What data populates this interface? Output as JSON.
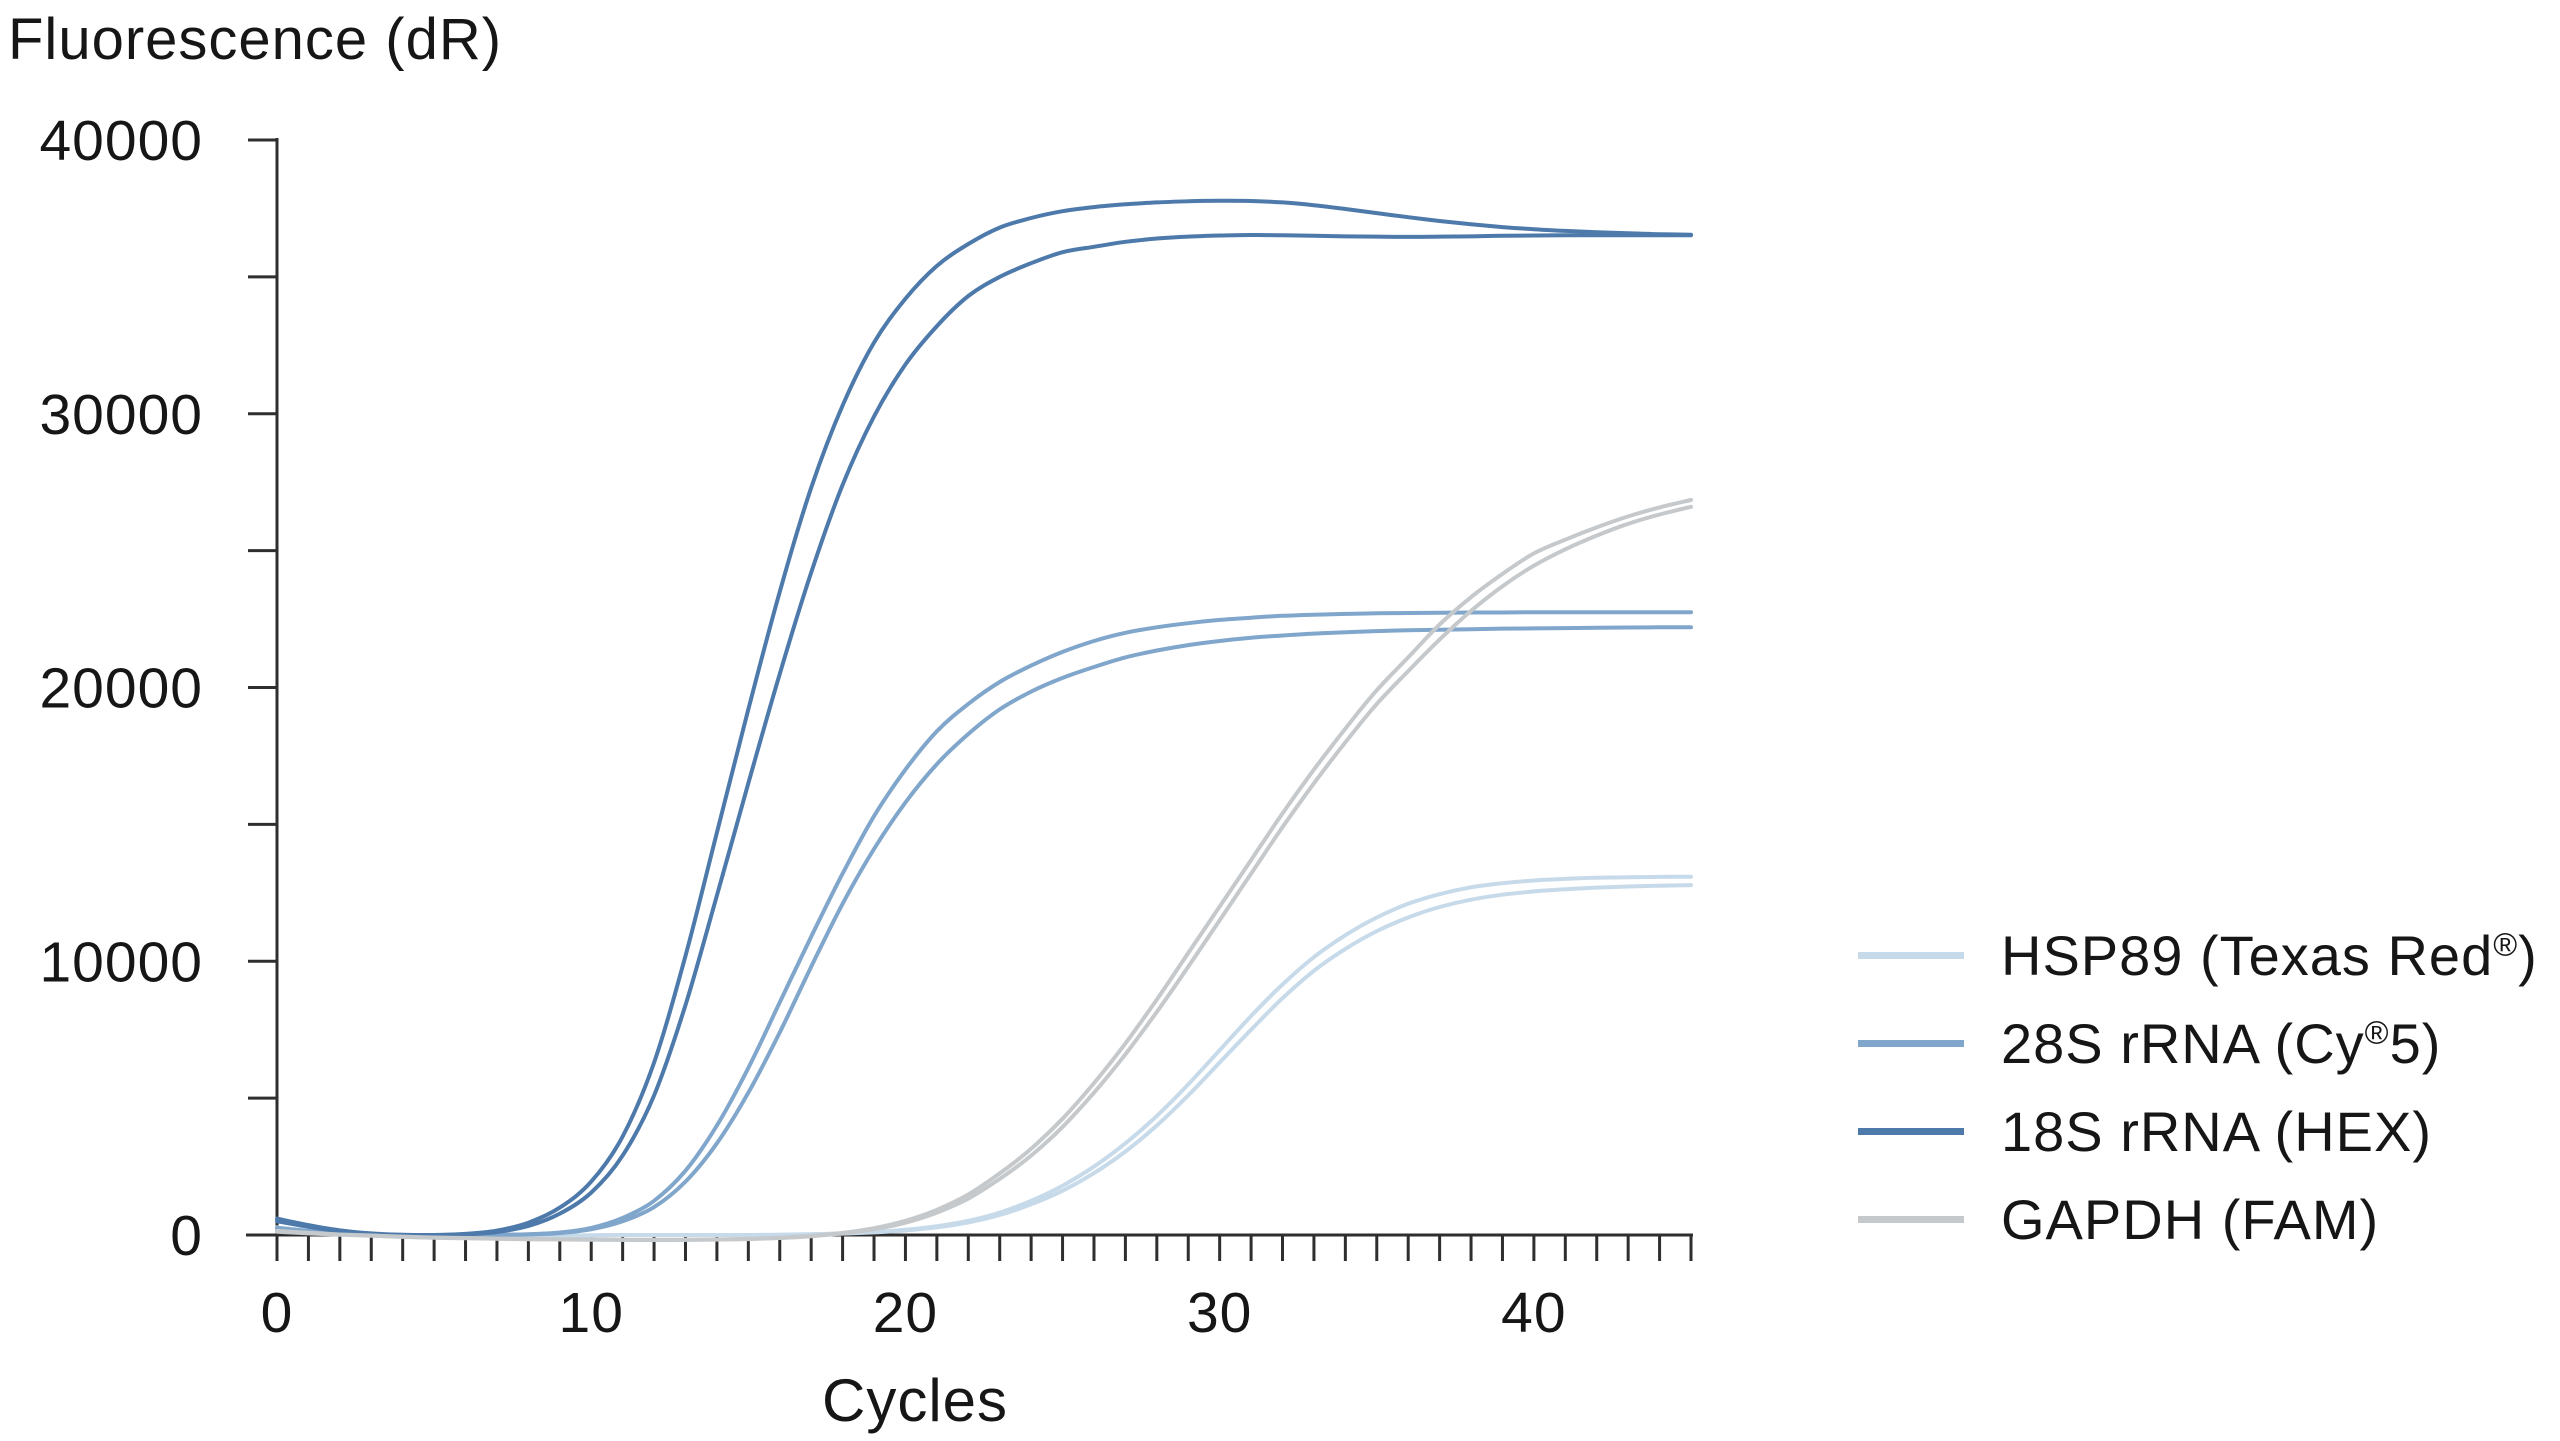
{
  "chart_data": {
    "type": "line",
    "xlabel": "Cycles",
    "ylabel": "Fluorescence (dR)",
    "xlim": [
      0,
      45
    ],
    "ylim": [
      0,
      40000
    ],
    "x_major_ticks": [
      0,
      10,
      20,
      30,
      40
    ],
    "x_minor_tick_step": 1,
    "y_major_ticks": [
      0,
      10000,
      20000,
      30000,
      40000
    ],
    "y_minor_tick_step": 5000,
    "grid": false,
    "legend_position": "right-center",
    "axis_color": "#2e2e2e",
    "text_color": "#161616",
    "cycles": [
      0,
      1,
      2,
      3,
      4,
      5,
      6,
      7,
      8,
      9,
      10,
      11,
      12,
      13,
      14,
      15,
      16,
      17,
      18,
      19,
      20,
      21,
      22,
      23,
      24,
      25,
      26,
      27,
      28,
      29,
      30,
      31,
      32,
      33,
      34,
      35,
      36,
      37,
      38,
      39,
      40,
      41,
      42,
      43,
      44,
      45
    ],
    "series": [
      {
        "id": "hsp89",
        "name": "HSP89 (Texas Red®)",
        "label_pre": "HSP89 (Texas Red",
        "label_sup": "®",
        "label_post": ")",
        "color": "#c7daea",
        "replicates": [
          [
            280,
            160,
            60,
            0,
            -40,
            -70,
            -80,
            -70,
            -50,
            -30,
            -10,
            0,
            0,
            0,
            0,
            0,
            10,
            30,
            60,
            110,
            190,
            320,
            520,
            820,
            1250,
            1800,
            2500,
            3350,
            4350,
            5500,
            6750,
            8000,
            9150,
            10150,
            10950,
            11600,
            12100,
            12450,
            12700,
            12850,
            12950,
            13010,
            13050,
            13070,
            13080,
            13090
          ],
          [
            220,
            120,
            40,
            -10,
            -50,
            -75,
            -85,
            -75,
            -55,
            -35,
            -15,
            0,
            0,
            0,
            0,
            0,
            10,
            25,
            50,
            95,
            165,
            280,
            460,
            730,
            1120,
            1620,
            2260,
            3050,
            4000,
            5100,
            6300,
            7500,
            8650,
            9650,
            10450,
            11100,
            11600,
            11980,
            12250,
            12430,
            12550,
            12630,
            12690,
            12730,
            12760,
            12780
          ]
        ]
      },
      {
        "id": "28s-rrna",
        "name": "28S rRNA (Cy®5)",
        "label_pre": "28S rRNA (Cy",
        "label_sup": "®",
        "label_post": "5)",
        "color": "#80a6cb",
        "replicates": [
          [
            260,
            150,
            60,
            10,
            0,
            0,
            0,
            10,
            30,
            90,
            260,
            620,
            1250,
            2350,
            4000,
            6100,
            8500,
            10900,
            13200,
            15300,
            17000,
            18400,
            19400,
            20200,
            20800,
            21300,
            21700,
            22000,
            22200,
            22350,
            22470,
            22550,
            22620,
            22660,
            22690,
            22710,
            22720,
            22730,
            22740,
            22740,
            22750,
            22750,
            22750,
            22750,
            22750,
            22750
          ],
          [
            200,
            110,
            40,
            0,
            0,
            0,
            0,
            0,
            20,
            70,
            210,
            500,
            1020,
            1950,
            3350,
            5200,
            7400,
            9800,
            12100,
            14100,
            15800,
            17200,
            18300,
            19200,
            19850,
            20350,
            20750,
            21100,
            21350,
            21550,
            21700,
            21820,
            21900,
            21970,
            22020,
            22060,
            22090,
            22110,
            22130,
            22150,
            22160,
            22170,
            22180,
            22190,
            22200,
            22200
          ]
        ]
      },
      {
        "id": "18s-rrna",
        "name": "18S rRNA (HEX)",
        "label_pre": "18S rRNA (HEX)",
        "label_sup": "",
        "label_post": "",
        "color": "#4d7aab",
        "replicates": [
          [
            600,
            360,
            170,
            60,
            10,
            0,
            40,
            160,
            450,
            1000,
            1950,
            3600,
            6300,
            10200,
            14700,
            19200,
            23500,
            27300,
            30300,
            32600,
            34200,
            35400,
            36200,
            36800,
            37150,
            37400,
            37550,
            37650,
            37720,
            37760,
            37780,
            37770,
            37720,
            37620,
            37480,
            37330,
            37180,
            37040,
            36920,
            36820,
            36740,
            36680,
            36630,
            36590,
            36560,
            36540
          ],
          [
            500,
            300,
            130,
            40,
            0,
            0,
            25,
            110,
            330,
            780,
            1550,
            2900,
            5100,
            8400,
            12400,
            16500,
            20500,
            24200,
            27400,
            29900,
            31800,
            33200,
            34300,
            35000,
            35500,
            35900,
            36100,
            36280,
            36400,
            36470,
            36510,
            36530,
            36520,
            36500,
            36480,
            36470,
            36460,
            36470,
            36480,
            36500,
            36510,
            36520,
            36520,
            36520,
            36520,
            36520
          ]
        ]
      },
      {
        "id": "gapdh",
        "name": "GAPDH (FAM)",
        "label_pre": "GAPDH (FAM)",
        "label_sup": "",
        "label_post": "",
        "color": "#c5c9cc",
        "replicates": [
          [
            150,
            80,
            20,
            -20,
            -60,
            -90,
            -110,
            -130,
            -145,
            -155,
            -165,
            -172,
            -175,
            -170,
            -160,
            -140,
            -100,
            -30,
            80,
            250,
            520,
            920,
            1480,
            2250,
            3150,
            4250,
            5550,
            7000,
            8600,
            10300,
            12000,
            13700,
            15400,
            17000,
            18500,
            19900,
            21100,
            22300,
            23300,
            24150,
            24900,
            25400,
            25850,
            26250,
            26580,
            26850
          ],
          [
            120,
            60,
            10,
            -30,
            -70,
            -100,
            -120,
            -140,
            -155,
            -165,
            -175,
            -180,
            -182,
            -178,
            -168,
            -148,
            -110,
            -45,
            60,
            210,
            450,
            820,
            1330,
            2050,
            2900,
            3950,
            5200,
            6600,
            8150,
            9800,
            11500,
            13200,
            14900,
            16500,
            18000,
            19400,
            20600,
            21750,
            22800,
            23700,
            24450,
            25050,
            25550,
            25980,
            26320,
            26600
          ]
        ]
      }
    ]
  }
}
